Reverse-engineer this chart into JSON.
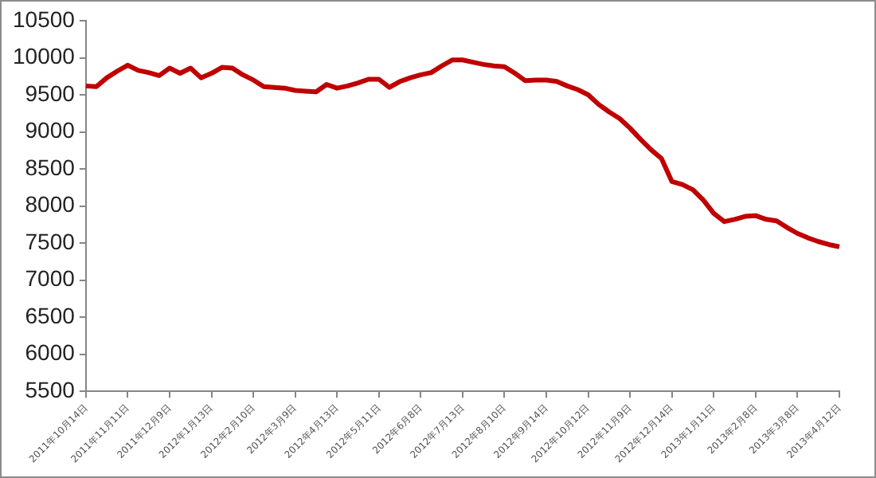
{
  "chart_data": {
    "type": "line",
    "categories": [
      "2011年10月14日",
      null,
      null,
      null,
      "2011年11月11日",
      null,
      null,
      null,
      "2011年12月9日",
      null,
      null,
      null,
      "2012年1月13日",
      null,
      null,
      null,
      "2012年2月10日",
      null,
      null,
      null,
      "2012年3月9日",
      null,
      null,
      null,
      "2012年4月13日",
      null,
      null,
      null,
      "2012年5月11日",
      null,
      null,
      null,
      "2012年6月8日",
      null,
      null,
      null,
      "2012年7月13日",
      null,
      null,
      null,
      "2012年8月10日",
      null,
      null,
      null,
      "2012年9月14日",
      null,
      null,
      null,
      "2012年10月12日",
      null,
      null,
      null,
      "2012年11月9日",
      null,
      null,
      null,
      "2012年12月14日",
      null,
      null,
      null,
      "2013年1月11日",
      null,
      null,
      null,
      "2013年2月8日",
      null,
      null,
      null,
      "2013年3月8日",
      null,
      null,
      null,
      "2013年4月12日"
    ],
    "values": [
      9620,
      9610,
      9730,
      9820,
      9900,
      9830,
      9800,
      9760,
      9860,
      9790,
      9860,
      9730,
      9790,
      9870,
      9860,
      9770,
      9700,
      9610,
      9600,
      9590,
      9560,
      9550,
      9540,
      9640,
      9590,
      9620,
      9660,
      9710,
      9710,
      9600,
      9680,
      9730,
      9770,
      9800,
      9890,
      9970,
      9970,
      9940,
      9910,
      9890,
      9880,
      9790,
      9690,
      9700,
      9700,
      9680,
      9620,
      9570,
      9500,
      9370,
      9270,
      9180,
      9050,
      8900,
      8760,
      8640,
      8330,
      8290,
      8220,
      8080,
      7900,
      7790,
      7820,
      7860,
      7870,
      7820,
      7800,
      7710,
      7630,
      7570,
      7520,
      7480,
      7450
    ],
    "color": "#c00000",
    "ylim": [
      5500,
      10500
    ],
    "yticks": [
      5500,
      6000,
      6500,
      7000,
      7500,
      8000,
      8500,
      9000,
      9500,
      10000,
      10500
    ]
  }
}
